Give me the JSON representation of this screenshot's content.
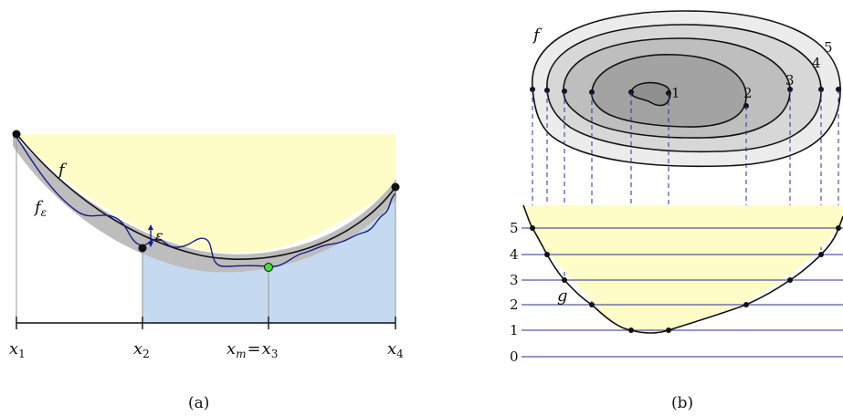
{
  "panel_a": {
    "caption": "(a)",
    "curve_f_label": "f",
    "curve_f_eps_label": "f",
    "curve_f_eps_sub": "ε",
    "epsilon_label": "ε",
    "ticks": [
      {
        "base": "x",
        "sub": "1"
      },
      {
        "base": "x",
        "sub": "2"
      },
      {
        "base": "x",
        "sub": "m",
        "eq": "=",
        "base2": "x",
        "sub2": "3"
      },
      {
        "base": "x",
        "sub": "4"
      }
    ],
    "colors": {
      "yellow": "#fefcc7",
      "blue": "#c5d9f0",
      "band": "#bfbfbf",
      "noisy": "#1a1a8c",
      "green": "#44dd33"
    }
  },
  "panel_b": {
    "caption": "(b)",
    "contour_label": "f",
    "graph_label": "g",
    "contour_numbers": [
      "1",
      "2",
      "3",
      "4",
      "5"
    ],
    "levels": [
      "5",
      "4",
      "3",
      "2",
      "1",
      "0"
    ],
    "colors": {
      "level_line": "#2b2b9a",
      "dashed": "#2b2b9a",
      "fill": "#fefcc7"
    }
  }
}
